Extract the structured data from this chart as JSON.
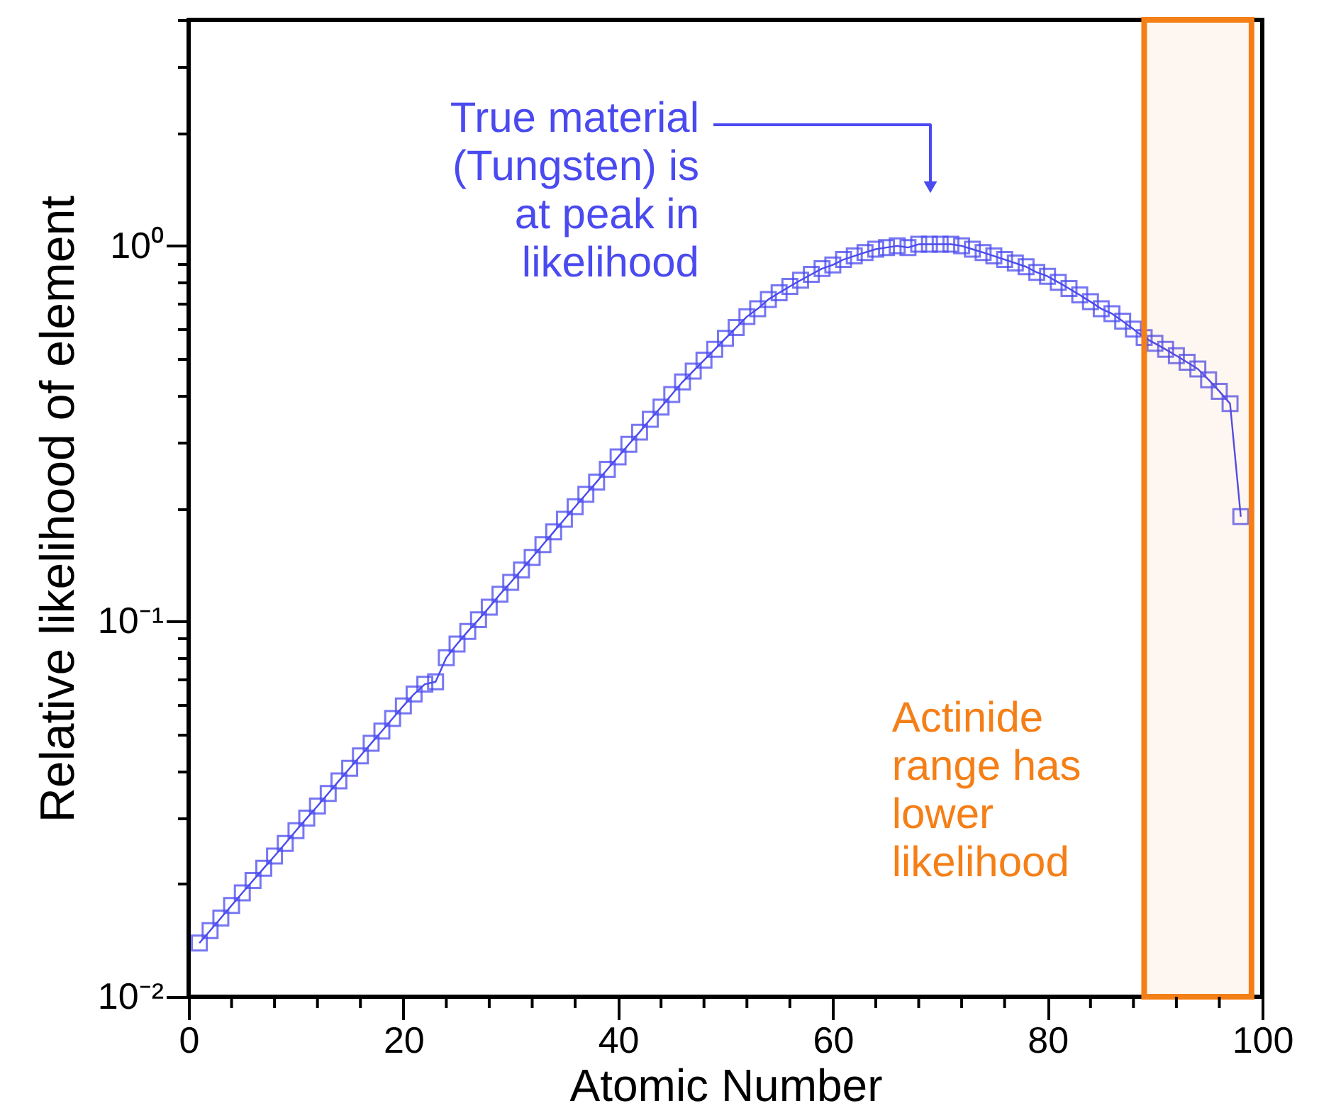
{
  "chart_data": {
    "type": "line",
    "xlabel": "Atomic Number",
    "ylabel": "Relative likelihood of element",
    "log": "y",
    "marker": "square",
    "line_style": "solid",
    "grid": false,
    "x": [
      1,
      2,
      3,
      4,
      5,
      6,
      7,
      8,
      9,
      10,
      11,
      12,
      13,
      14,
      15,
      16,
      17,
      18,
      19,
      20,
      21,
      22,
      23,
      24,
      25,
      26,
      27,
      28,
      29,
      30,
      31,
      32,
      33,
      34,
      35,
      36,
      37,
      38,
      39,
      40,
      41,
      42,
      43,
      44,
      45,
      46,
      47,
      48,
      49,
      50,
      51,
      52,
      53,
      54,
      55,
      56,
      57,
      58,
      59,
      60,
      61,
      62,
      63,
      64,
      65,
      66,
      67,
      68,
      69,
      70,
      71,
      72,
      73,
      74,
      75,
      76,
      77,
      78,
      79,
      80,
      81,
      82,
      83,
      84,
      85,
      86,
      87,
      88,
      89,
      90,
      91,
      92,
      93,
      94,
      95,
      96,
      97,
      98
    ],
    "series": [
      {
        "color": "#4a4af0",
        "values": [
          0.0139,
          0.015,
          0.0162,
          0.0175,
          0.0189,
          0.0204,
          0.022,
          0.0237,
          0.0256,
          0.0277,
          0.0299,
          0.0322,
          0.0348,
          0.0376,
          0.0406,
          0.0438,
          0.0473,
          0.051,
          0.0551,
          0.0595,
          0.064,
          0.068,
          0.069,
          0.08,
          0.087,
          0.094,
          0.101,
          0.109,
          0.118,
          0.127,
          0.137,
          0.148,
          0.16,
          0.173,
          0.187,
          0.202,
          0.218,
          0.235,
          0.254,
          0.274,
          0.296,
          0.319,
          0.345,
          0.372,
          0.402,
          0.434,
          0.464,
          0.496,
          0.53,
          0.567,
          0.606,
          0.648,
          0.68,
          0.72,
          0.75,
          0.78,
          0.81,
          0.84,
          0.87,
          0.89,
          0.92,
          0.94,
          0.96,
          0.98,
          0.99,
          1.0,
          0.99,
          1.01,
          1.01,
          1.01,
          1.01,
          1.0,
          0.98,
          0.96,
          0.94,
          0.92,
          0.9,
          0.88,
          0.85,
          0.83,
          0.8,
          0.77,
          0.74,
          0.71,
          0.68,
          0.66,
          0.63,
          0.6,
          0.57,
          0.55,
          0.53,
          0.51,
          0.49,
          0.47,
          0.44,
          0.41,
          0.38,
          0.19
        ]
      }
    ],
    "xlim": [
      0,
      100
    ],
    "xticks": [
      0,
      {
        "value": 4,
        "label": null
      },
      {
        "value": 8,
        "label": null
      },
      {
        "value": 12,
        "label": null
      },
      {
        "value": 16,
        "label": null
      },
      20,
      {
        "value": 24,
        "label": null
      },
      {
        "value": 28,
        "label": null
      },
      {
        "value": 32,
        "label": null
      },
      {
        "value": 36,
        "label": null
      },
      40,
      {
        "value": 44,
        "label": null
      },
      {
        "value": 48,
        "label": null
      },
      {
        "value": 52,
        "label": null
      },
      {
        "value": 56,
        "label": null
      },
      60,
      {
        "value": 64,
        "label": null
      },
      {
        "value": 68,
        "label": null
      },
      {
        "value": 72,
        "label": null
      },
      {
        "value": 76,
        "label": null
      },
      80,
      {
        "value": 84,
        "label": null
      },
      {
        "value": 88,
        "label": null
      },
      {
        "value": 92,
        "label": null
      },
      {
        "value": 96,
        "label": null
      },
      100
    ],
    "ylim": [
      0.01,
      4
    ],
    "yticks": [
      {
        "value": 0.01,
        "label": "10⁻²"
      },
      {
        "value": 0.02,
        "label": null
      },
      {
        "value": 0.03,
        "label": null
      },
      {
        "value": 0.04,
        "label": null
      },
      {
        "value": 0.05,
        "label": null
      },
      {
        "value": 0.06,
        "label": null
      },
      {
        "value": 0.07,
        "label": null
      },
      {
        "value": 0.08,
        "label": null
      },
      {
        "value": 0.09,
        "label": null
      },
      {
        "value": 0.1,
        "label": "10⁻¹"
      },
      {
        "value": 0.2,
        "label": null
      },
      {
        "value": 0.3,
        "label": null
      },
      {
        "value": 0.4,
        "label": null
      },
      {
        "value": 0.5,
        "label": null
      },
      {
        "value": 0.6,
        "label": null
      },
      {
        "value": 0.7,
        "label": null
      },
      {
        "value": 0.8,
        "label": null
      },
      {
        "value": 0.9,
        "label": null
      },
      {
        "value": 1,
        "label": "10⁰"
      },
      {
        "value": 2,
        "label": null
      },
      {
        "value": 3,
        "label": null
      },
      {
        "value": 4,
        "label": null
      }
    ],
    "bands": [
      {
        "axis": "x",
        "from": 89,
        "to": 99,
        "color": "#f57f17",
        "label": "Actinide\nrange has\nlower\nlikelihood"
      }
    ],
    "annotations": [
      "True material\n(Tungsten) is\nat peak in\nlikelihood"
    ]
  }
}
